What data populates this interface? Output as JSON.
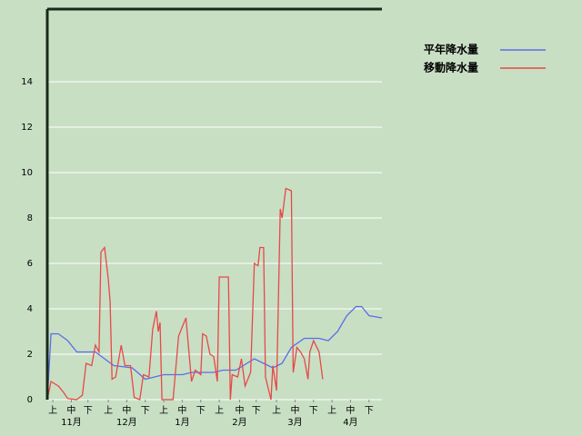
{
  "chart_data": {
    "type": "line",
    "xlim": [
      0,
      181
    ],
    "xticks": [
      {
        "value": 3,
        "label": "上"
      },
      {
        "value": 13,
        "label": "中"
      },
      {
        "value": 22,
        "label": "下"
      },
      {
        "value": 33,
        "label": "上"
      },
      {
        "value": 43,
        "label": "中"
      },
      {
        "value": 53,
        "label": "下"
      },
      {
        "value": 63,
        "label": "上"
      },
      {
        "value": 73,
        "label": "中"
      },
      {
        "value": 83,
        "label": "下"
      },
      {
        "value": 93,
        "label": "上"
      },
      {
        "value": 104,
        "label": "中"
      },
      {
        "value": 113,
        "label": "下"
      },
      {
        "value": 124,
        "label": "上"
      },
      {
        "value": 134,
        "label": "中"
      },
      {
        "value": 144,
        "label": "下"
      },
      {
        "value": 154,
        "label": "上"
      },
      {
        "value": 164,
        "label": "中"
      },
      {
        "value": 174,
        "label": "下"
      }
    ],
    "month_labels": [
      {
        "value": 13,
        "label": "11月"
      },
      {
        "value": 43,
        "label": "12月"
      },
      {
        "value": 73,
        "label": "1月"
      },
      {
        "value": 104,
        "label": "2月"
      },
      {
        "value": 134,
        "label": "3月"
      },
      {
        "value": 164,
        "label": "4月"
      }
    ],
    "ylim": [
      0,
      17.2
    ],
    "yticks": [
      0,
      2,
      4,
      6,
      8,
      10,
      12,
      14
    ],
    "grid": true,
    "series": [
      {
        "name": "平年降水量",
        "color": "#5a6ee6",
        "x": [
          0,
          2,
          6,
          11,
          16,
          26,
          31,
          36,
          46,
          53,
          63,
          73,
          78,
          90,
          95,
          102,
          112,
          122,
          127,
          132,
          139,
          147,
          152,
          157,
          162,
          167,
          170,
          174,
          181
        ],
        "values": [
          0,
          2.9,
          2.9,
          2.6,
          2.1,
          2.1,
          1.8,
          1.5,
          1.4,
          0.9,
          1.1,
          1.1,
          1.2,
          1.2,
          1.3,
          1.3,
          1.8,
          1.4,
          1.6,
          2.3,
          2.7,
          2.7,
          2.6,
          3.0,
          3.7,
          4.1,
          4.1,
          3.7,
          3.6
        ]
      },
      {
        "name": "移動降水量",
        "color": "#e84848",
        "x": [
          0,
          2,
          6,
          9,
          11,
          16,
          19,
          21,
          24,
          26,
          28,
          29,
          31,
          33,
          34,
          35,
          37,
          40,
          42,
          45,
          47,
          50,
          52,
          55,
          57,
          59,
          60,
          61,
          62,
          68,
          71,
          73,
          75,
          78,
          80,
          83,
          84,
          86,
          88,
          90,
          92,
          93,
          98,
          99,
          100,
          103,
          105,
          107,
          110,
          112,
          114,
          115,
          117,
          118,
          121,
          122,
          124,
          126,
          127,
          129,
          132,
          133,
          135,
          137,
          139,
          141,
          142,
          144,
          147,
          149
        ],
        "values": [
          0,
          0.8,
          0.6,
          0.3,
          0.05,
          0,
          0.2,
          1.6,
          1.5,
          2.4,
          2.1,
          6.5,
          6.7,
          5.3,
          4.3,
          0.9,
          1.0,
          2.4,
          1.5,
          1.5,
          0.1,
          0,
          1.1,
          1.0,
          3.1,
          3.9,
          3.0,
          3.4,
          0,
          0,
          2.8,
          3.2,
          3.6,
          0.8,
          1.3,
          1.1,
          2.9,
          2.8,
          2.0,
          1.9,
          0.8,
          5.4,
          5.4,
          0,
          1.1,
          1.0,
          1.8,
          0.6,
          1.2,
          6.0,
          5.9,
          6.7,
          6.7,
          1.0,
          0,
          1.5,
          0.4,
          8.4,
          8.0,
          9.3,
          9.2,
          1.2,
          2.3,
          2.1,
          1.8,
          0.9,
          2.1,
          2.6,
          2.1,
          0.9
        ]
      }
    ]
  }
}
